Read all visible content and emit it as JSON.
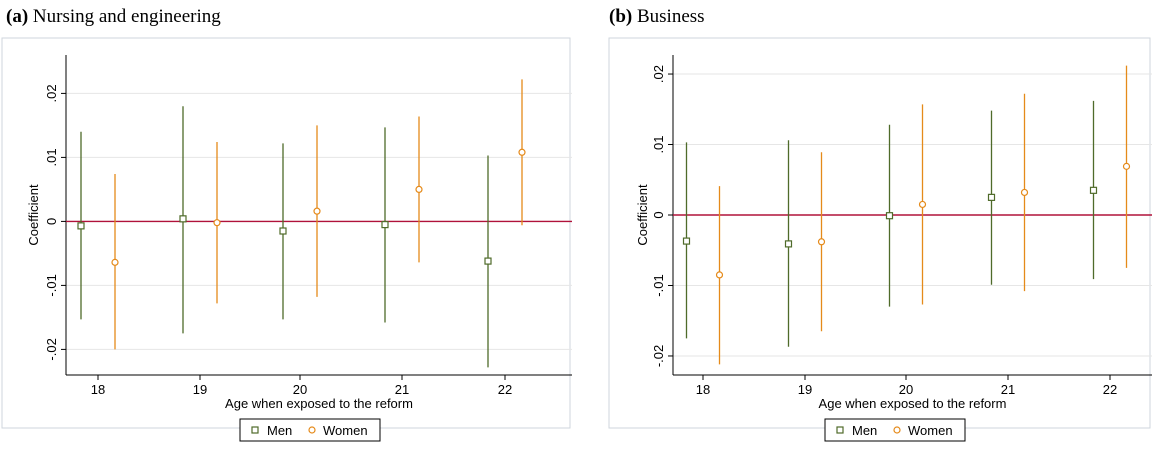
{
  "panels": [
    {
      "label": "(a)",
      "title": "Nursing and engineering"
    },
    {
      "label": "(b)",
      "title": "Business"
    }
  ],
  "colors": {
    "men": "#4f6b2a",
    "women": "#e58a1a",
    "zero_line": "#b0123a",
    "grid": "#e6e6e6",
    "frame": "#000000"
  },
  "chart_data": [
    {
      "type": "scatter",
      "title": "Nursing and engineering",
      "xlabel": "Age when exposed to the reform",
      "ylabel": "Coefficient",
      "categories": [
        18,
        19,
        20,
        21,
        22
      ],
      "ylim": [
        -0.024,
        0.026
      ],
      "yticks": [
        0.02,
        0.01,
        0,
        -0.01,
        -0.02
      ],
      "ytick_labels": [
        ".02",
        ".01",
        "0",
        "-.01",
        "-.02"
      ],
      "grid": true,
      "legend": "bottom",
      "reference_line": 0,
      "series": [
        {
          "name": "Men",
          "marker": "square",
          "points": [
            {
              "x": 18,
              "y": -0.0007,
              "lo": -0.0153,
              "hi": 0.014
            },
            {
              "x": 19,
              "y": 0.0004,
              "lo": -0.0175,
              "hi": 0.018
            },
            {
              "x": 20,
              "y": -0.0015,
              "lo": -0.0153,
              "hi": 0.0122
            },
            {
              "x": 21,
              "y": -0.0005,
              "lo": -0.0158,
              "hi": 0.0147
            },
            {
              "x": 22,
              "y": -0.0062,
              "lo": -0.0228,
              "hi": 0.0103
            }
          ]
        },
        {
          "name": "Women",
          "marker": "circle",
          "points": [
            {
              "x": 18,
              "y": -0.0064,
              "lo": -0.02,
              "hi": 0.0074
            },
            {
              "x": 19,
              "y": -0.0002,
              "lo": -0.0128,
              "hi": 0.0124
            },
            {
              "x": 20,
              "y": 0.0016,
              "lo": -0.0118,
              "hi": 0.015
            },
            {
              "x": 21,
              "y": 0.005,
              "lo": -0.0064,
              "hi": 0.0164
            },
            {
              "x": 22,
              "y": 0.0108,
              "lo": -0.0006,
              "hi": 0.0222
            }
          ]
        }
      ]
    },
    {
      "type": "scatter",
      "title": "Business",
      "xlabel": "Age when exposed to the reform",
      "ylabel": "Coefficient",
      "categories": [
        18,
        19,
        20,
        21,
        22
      ],
      "ylim": [
        -0.0227,
        0.0227
      ],
      "yticks": [
        0.02,
        0.01,
        0,
        -0.01,
        -0.02
      ],
      "ytick_labels": [
        ".02",
        ".01",
        "0",
        "-.01",
        "-.02"
      ],
      "grid": true,
      "legend": "bottom",
      "reference_line": 0,
      "series": [
        {
          "name": "Men",
          "marker": "square",
          "points": [
            {
              "x": 18,
              "y": -0.0037,
              "lo": -0.0175,
              "hi": 0.0103
            },
            {
              "x": 19,
              "y": -0.0041,
              "lo": -0.0187,
              "hi": 0.0106
            },
            {
              "x": 20,
              "y": -0.0001,
              "lo": -0.013,
              "hi": 0.0128
            },
            {
              "x": 21,
              "y": 0.0025,
              "lo": -0.0099,
              "hi": 0.0148
            },
            {
              "x": 22,
              "y": 0.0035,
              "lo": -0.0091,
              "hi": 0.0162
            }
          ]
        },
        {
          "name": "Women",
          "marker": "circle",
          "points": [
            {
              "x": 18,
              "y": -0.0085,
              "lo": -0.0212,
              "hi": 0.0041
            },
            {
              "x": 19,
              "y": -0.0038,
              "lo": -0.0165,
              "hi": 0.0089
            },
            {
              "x": 20,
              "y": 0.0015,
              "lo": -0.0127,
              "hi": 0.0157
            },
            {
              "x": 21,
              "y": 0.0032,
              "lo": -0.0108,
              "hi": 0.0172
            },
            {
              "x": 22,
              "y": 0.0069,
              "lo": -0.0075,
              "hi": 0.0212
            }
          ]
        }
      ]
    }
  ]
}
